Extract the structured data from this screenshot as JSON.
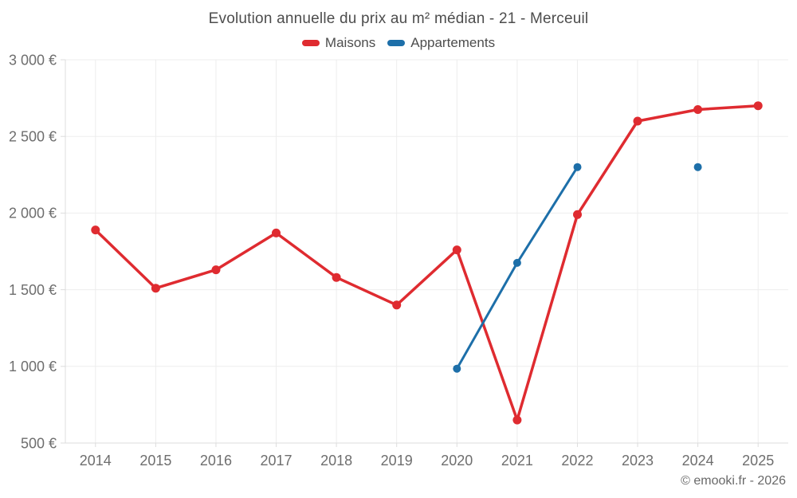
{
  "header": {
    "title": "Evolution annuelle du prix au m² médian - 21 - Merceuil"
  },
  "footer": {
    "text": "© emooki.fr - 2026"
  },
  "chart_data": {
    "type": "line",
    "title": "Evolution annuelle du prix au m² médian - 21 - Merceuil",
    "categories": [
      "2014",
      "2015",
      "2016",
      "2017",
      "2018",
      "2019",
      "2020",
      "2021",
      "2022",
      "2023",
      "2024",
      "2025"
    ],
    "series": [
      {
        "name": "Maisons",
        "color": "#df2b30",
        "marker_radius": 5.5,
        "line_width": 3.5,
        "values": [
          1890,
          1510,
          1630,
          1870,
          1580,
          1400,
          1760,
          650,
          1990,
          2600,
          2675,
          2700
        ]
      },
      {
        "name": "Appartements",
        "color": "#1d6fa9",
        "marker_radius": 5,
        "line_width": 3,
        "values": [
          null,
          null,
          null,
          null,
          null,
          null,
          985,
          1675,
          2300,
          null,
          2300,
          null
        ]
      }
    ],
    "xlabel": "",
    "ylabel": "",
    "ylim": [
      500,
      3000
    ],
    "y_tick_values": [
      500,
      1000,
      1500,
      2000,
      2500,
      3000
    ],
    "y_tick_labels": [
      "500 €",
      "1 000 €",
      "1 500 €",
      "2 000 €",
      "2 500 €",
      "3 000 €"
    ],
    "grid": true,
    "legend_position": "top"
  },
  "colors": {
    "gridline": "#ededed",
    "axis": "#dcdcdc",
    "title_text": "#4d4d4d",
    "tick_text": "#6e6e6e",
    "footer_text": "#696969"
  }
}
